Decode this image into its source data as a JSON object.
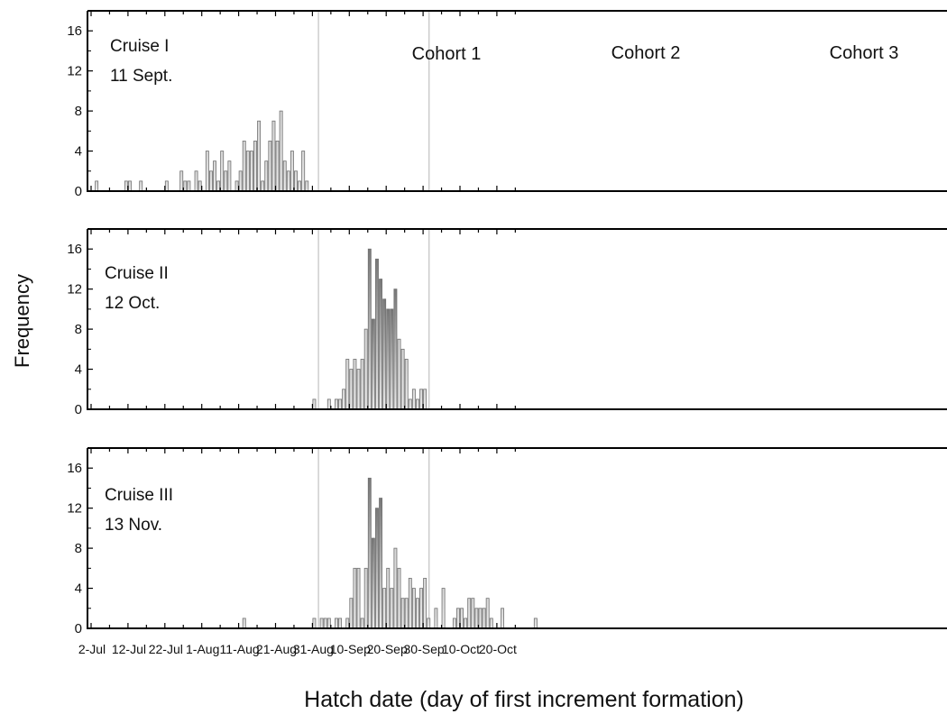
{
  "chart_data": {
    "type": "bar",
    "ylabel": "Frequency",
    "xlabel": "Hatch date (day of first increment formation)",
    "x_tick_labels": [
      "2-Jul",
      "12-Jul",
      "22-Jul",
      "1-Aug",
      "11-Aug",
      "21-Aug",
      "31-Aug",
      "10-Sep",
      "20-Sep",
      "30-Sep",
      "10-Oct",
      "20-Oct"
    ],
    "y_tick_labels": [
      "0",
      "4",
      "8",
      "12",
      "16"
    ],
    "ylim": [
      0,
      18
    ],
    "xlim": [
      "2-Jul",
      "29-Oct"
    ],
    "cohort_boundaries": [
      "1-Sep",
      "1-Oct"
    ],
    "cohort_labels": [
      "Cohort 1",
      "Cohort 2",
      "Cohort 3"
    ],
    "bar_colors": {
      "low": "#ebebeb",
      "high": "#787878",
      "outline": "#707070"
    },
    "panels": [
      {
        "label_line1": "Cruise I",
        "label_line2": "11 Sept.",
        "show_cohort_labels": true,
        "bars": [
          {
            "date": "2-Jul",
            "count": 1
          },
          {
            "date": "10-Jul",
            "count": 1
          },
          {
            "date": "11-Jul",
            "count": 1
          },
          {
            "date": "14-Jul",
            "count": 1
          },
          {
            "date": "21-Jul",
            "count": 1
          },
          {
            "date": "25-Jul",
            "count": 2
          },
          {
            "date": "26-Jul",
            "count": 1
          },
          {
            "date": "27-Jul",
            "count": 1
          },
          {
            "date": "29-Jul",
            "count": 2
          },
          {
            "date": "30-Jul",
            "count": 1
          },
          {
            "date": "1-Aug",
            "count": 4
          },
          {
            "date": "2-Aug",
            "count": 2
          },
          {
            "date": "3-Aug",
            "count": 3
          },
          {
            "date": "4-Aug",
            "count": 1
          },
          {
            "date": "5-Aug",
            "count": 4
          },
          {
            "date": "6-Aug",
            "count": 2
          },
          {
            "date": "7-Aug",
            "count": 3
          },
          {
            "date": "9-Aug",
            "count": 1
          },
          {
            "date": "10-Aug",
            "count": 2
          },
          {
            "date": "11-Aug",
            "count": 5
          },
          {
            "date": "12-Aug",
            "count": 4
          },
          {
            "date": "13-Aug",
            "count": 4
          },
          {
            "date": "14-Aug",
            "count": 5
          },
          {
            "date": "15-Aug",
            "count": 7
          },
          {
            "date": "16-Aug",
            "count": 1
          },
          {
            "date": "17-Aug",
            "count": 3
          },
          {
            "date": "18-Aug",
            "count": 5
          },
          {
            "date": "19-Aug",
            "count": 7
          },
          {
            "date": "20-Aug",
            "count": 5
          },
          {
            "date": "21-Aug",
            "count": 8
          },
          {
            "date": "22-Aug",
            "count": 3
          },
          {
            "date": "23-Aug",
            "count": 2
          },
          {
            "date": "24-Aug",
            "count": 4
          },
          {
            "date": "25-Aug",
            "count": 2
          },
          {
            "date": "26-Aug",
            "count": 1
          },
          {
            "date": "27-Aug",
            "count": 4
          },
          {
            "date": "28-Aug",
            "count": 1
          }
        ]
      },
      {
        "label_line1": "Cruise II",
        "label_line2": "12 Oct.",
        "show_cohort_labels": false,
        "bars": [
          {
            "date": "30-Aug",
            "count": 1
          },
          {
            "date": "3-Sep",
            "count": 1
          },
          {
            "date": "5-Sep",
            "count": 1
          },
          {
            "date": "6-Sep",
            "count": 1
          },
          {
            "date": "7-Sep",
            "count": 2
          },
          {
            "date": "8-Sep",
            "count": 5
          },
          {
            "date": "9-Sep",
            "count": 4
          },
          {
            "date": "10-Sep",
            "count": 5
          },
          {
            "date": "11-Sep",
            "count": 4
          },
          {
            "date": "12-Sep",
            "count": 5
          },
          {
            "date": "13-Sep",
            "count": 8
          },
          {
            "date": "14-Sep",
            "count": 16
          },
          {
            "date": "15-Sep",
            "count": 9
          },
          {
            "date": "16-Sep",
            "count": 15
          },
          {
            "date": "17-Sep",
            "count": 13
          },
          {
            "date": "18-Sep",
            "count": 11
          },
          {
            "date": "19-Sep",
            "count": 10
          },
          {
            "date": "20-Sep",
            "count": 10
          },
          {
            "date": "21-Sep",
            "count": 12
          },
          {
            "date": "22-Sep",
            "count": 7
          },
          {
            "date": "23-Sep",
            "count": 6
          },
          {
            "date": "24-Sep",
            "count": 5
          },
          {
            "date": "25-Sep",
            "count": 1
          },
          {
            "date": "26-Sep",
            "count": 2
          },
          {
            "date": "27-Sep",
            "count": 1
          },
          {
            "date": "28-Sep",
            "count": 2
          },
          {
            "date": "29-Sep",
            "count": 2
          }
        ]
      },
      {
        "label_line1": "Cruise III",
        "label_line2": "13 Nov.",
        "show_cohort_labels": false,
        "bars": [
          {
            "date": "11-Aug",
            "count": 1
          },
          {
            "date": "30-Aug",
            "count": 1
          },
          {
            "date": "1-Sep",
            "count": 1
          },
          {
            "date": "2-Sep",
            "count": 1
          },
          {
            "date": "3-Sep",
            "count": 1
          },
          {
            "date": "5-Sep",
            "count": 1
          },
          {
            "date": "6-Sep",
            "count": 1
          },
          {
            "date": "8-Sep",
            "count": 1
          },
          {
            "date": "9-Sep",
            "count": 3
          },
          {
            "date": "10-Sep",
            "count": 6
          },
          {
            "date": "11-Sep",
            "count": 6
          },
          {
            "date": "12-Sep",
            "count": 1
          },
          {
            "date": "13-Sep",
            "count": 6
          },
          {
            "date": "14-Sep",
            "count": 15
          },
          {
            "date": "15-Sep",
            "count": 9
          },
          {
            "date": "16-Sep",
            "count": 12
          },
          {
            "date": "17-Sep",
            "count": 13
          },
          {
            "date": "18-Sep",
            "count": 4
          },
          {
            "date": "19-Sep",
            "count": 6
          },
          {
            "date": "20-Sep",
            "count": 4
          },
          {
            "date": "21-Sep",
            "count": 8
          },
          {
            "date": "22-Sep",
            "count": 6
          },
          {
            "date": "23-Sep",
            "count": 3
          },
          {
            "date": "24-Sep",
            "count": 3
          },
          {
            "date": "25-Sep",
            "count": 5
          },
          {
            "date": "26-Sep",
            "count": 4
          },
          {
            "date": "27-Sep",
            "count": 3
          },
          {
            "date": "28-Sep",
            "count": 4
          },
          {
            "date": "29-Sep",
            "count": 5
          },
          {
            "date": "30-Sep",
            "count": 1
          },
          {
            "date": "2-Oct",
            "count": 2
          },
          {
            "date": "4-Oct",
            "count": 4
          },
          {
            "date": "7-Oct",
            "count": 1
          },
          {
            "date": "8-Oct",
            "count": 2
          },
          {
            "date": "9-Oct",
            "count": 2
          },
          {
            "date": "10-Oct",
            "count": 1
          },
          {
            "date": "11-Oct",
            "count": 3
          },
          {
            "date": "12-Oct",
            "count": 3
          },
          {
            "date": "13-Oct",
            "count": 2
          },
          {
            "date": "14-Oct",
            "count": 2
          },
          {
            "date": "15-Oct",
            "count": 2
          },
          {
            "date": "16-Oct",
            "count": 3
          },
          {
            "date": "17-Oct",
            "count": 1
          },
          {
            "date": "20-Oct",
            "count": 2
          },
          {
            "date": "29-Oct",
            "count": 1
          }
        ]
      }
    ]
  }
}
